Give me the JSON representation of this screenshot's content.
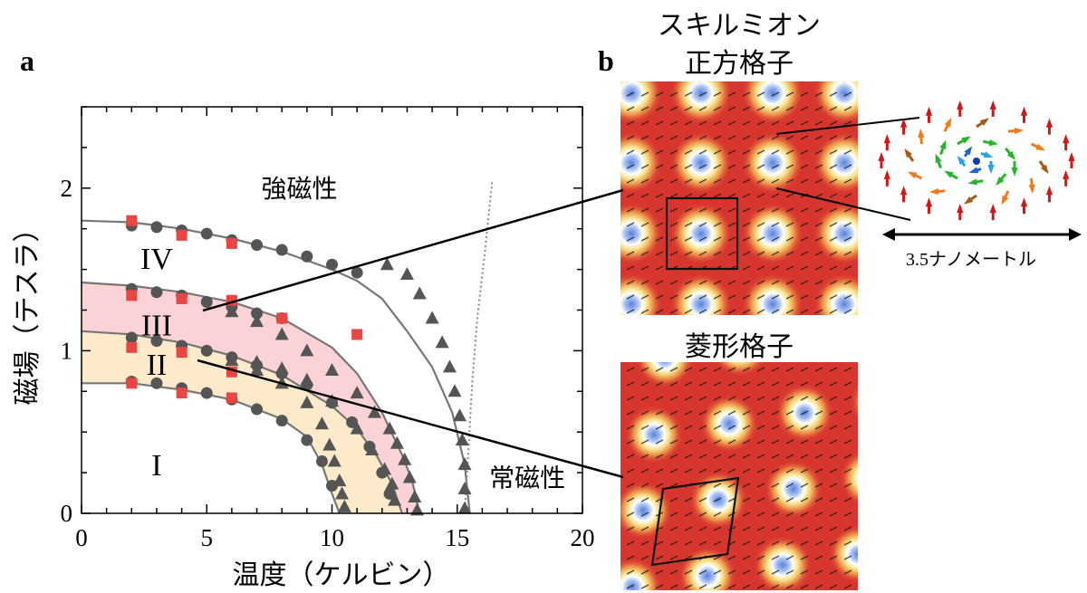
{
  "panel_a": {
    "letter": "a",
    "chart_data": {
      "type": "scatter",
      "xlabel": "温度（ケルビン）",
      "ylabel": "磁場（テスラ）",
      "xlim": [
        0,
        20
      ],
      "ylim": [
        0,
        2.5
      ],
      "x_ticks": [
        "0",
        "5",
        "10",
        "15",
        "20"
      ],
      "y_ticks": [
        "0",
        "1",
        "2"
      ],
      "region_labels": [
        {
          "text": "I",
          "x": 3,
          "y": 0.3
        },
        {
          "text": "II",
          "x": 3,
          "y": 0.92
        },
        {
          "text": "III",
          "x": 3,
          "y": 1.16
        },
        {
          "text": "IV",
          "x": 3,
          "y": 1.57
        }
      ],
      "phase_labels": [
        {
          "text": "強磁性",
          "x": 8.7,
          "y": 2.0
        },
        {
          "text": "常磁性",
          "x": 17.8,
          "y": 0.22
        }
      ],
      "bands": [
        {
          "color": "#fbd3d7",
          "upper": [
            [
              0,
              1.42
            ],
            [
              2,
              1.4
            ],
            [
              4,
              1.36
            ],
            [
              6,
              1.3
            ],
            [
              8,
              1.2
            ],
            [
              10,
              1.02
            ],
            [
              11,
              0.86
            ],
            [
              12,
              0.62
            ],
            [
              12.8,
              0.36
            ],
            [
              13.2,
              0.2
            ],
            [
              13.5,
              0
            ]
          ],
          "lower": [
            [
              0,
              1.12
            ],
            [
              2,
              1.1
            ],
            [
              4,
              1.05
            ],
            [
              6,
              0.97
            ],
            [
              8,
              0.85
            ],
            [
              10,
              0.66
            ],
            [
              11,
              0.52
            ],
            [
              11.8,
              0.35
            ],
            [
              12.4,
              0.18
            ],
            [
              12.8,
              0
            ]
          ]
        },
        {
          "color": "#fdeacb",
          "upper": [
            [
              0,
              1.12
            ],
            [
              2,
              1.1
            ],
            [
              4,
              1.05
            ],
            [
              6,
              0.97
            ],
            [
              8,
              0.85
            ],
            [
              10,
              0.66
            ],
            [
              11,
              0.52
            ],
            [
              11.8,
              0.35
            ],
            [
              12.4,
              0.18
            ],
            [
              12.8,
              0
            ]
          ],
          "lower": [
            [
              0,
              0.8
            ],
            [
              2,
              0.8
            ],
            [
              4,
              0.76
            ],
            [
              6,
              0.7
            ],
            [
              8,
              0.58
            ],
            [
              9,
              0.47
            ],
            [
              9.6,
              0.3
            ],
            [
              10,
              0.12
            ],
            [
              10.3,
              0
            ]
          ]
        }
      ],
      "curves": [
        [
          [
            0,
            1.8
          ],
          [
            2,
            1.79
          ],
          [
            4,
            1.75
          ],
          [
            6,
            1.69
          ],
          [
            8,
            1.61
          ],
          [
            10,
            1.5
          ],
          [
            11,
            1.43
          ],
          [
            12,
            1.32
          ],
          [
            13,
            1.12
          ],
          [
            14,
            0.9
          ],
          [
            14.8,
            0.62
          ],
          [
            15.3,
            0.3
          ],
          [
            15.5,
            0
          ]
        ],
        [
          [
            0,
            1.42
          ],
          [
            2,
            1.4
          ],
          [
            4,
            1.36
          ],
          [
            6,
            1.3
          ],
          [
            8,
            1.2
          ],
          [
            10,
            1.02
          ],
          [
            11,
            0.86
          ],
          [
            12,
            0.62
          ],
          [
            12.8,
            0.36
          ],
          [
            13.2,
            0.2
          ],
          [
            13.5,
            0
          ]
        ],
        [
          [
            0,
            1.12
          ],
          [
            2,
            1.1
          ],
          [
            4,
            1.05
          ],
          [
            6,
            0.97
          ],
          [
            8,
            0.85
          ],
          [
            10,
            0.66
          ],
          [
            11,
            0.52
          ],
          [
            11.8,
            0.35
          ],
          [
            12.4,
            0.18
          ],
          [
            12.8,
            0
          ]
        ],
        [
          [
            0,
            0.8
          ],
          [
            2,
            0.8
          ],
          [
            4,
            0.76
          ],
          [
            6,
            0.7
          ],
          [
            8,
            0.58
          ],
          [
            9,
            0.47
          ],
          [
            9.6,
            0.3
          ],
          [
            10,
            0.12
          ],
          [
            10.3,
            0
          ]
        ]
      ],
      "dotted_curve": [
        [
          15.3,
          0
        ],
        [
          15.45,
          0.4
        ],
        [
          15.6,
          0.8
        ],
        [
          15.8,
          1.2
        ],
        [
          16.1,
          1.6
        ],
        [
          16.4,
          2.05
        ]
      ],
      "series": [
        {
          "marker": "circle",
          "color": "#555555",
          "points": [
            [
              2,
              1.77
            ],
            [
              3,
              1.76
            ],
            [
              4,
              1.74
            ],
            [
              5,
              1.72
            ],
            [
              6,
              1.68
            ],
            [
              7,
              1.65
            ],
            [
              8,
              1.62
            ],
            [
              9,
              1.58
            ],
            [
              10,
              1.53
            ],
            [
              11,
              1.48
            ],
            [
              2,
              1.38
            ],
            [
              3,
              1.36
            ],
            [
              4,
              1.34
            ],
            [
              5,
              1.3
            ],
            [
              6,
              1.27
            ],
            [
              7,
              1.23
            ],
            [
              8,
              1.2
            ],
            [
              2,
              1.08
            ],
            [
              3,
              1.06
            ],
            [
              4,
              1.03
            ],
            [
              5,
              1.0
            ],
            [
              6,
              0.96
            ],
            [
              7,
              0.91
            ],
            [
              8,
              0.86
            ],
            [
              9,
              0.79
            ],
            [
              10,
              0.68
            ],
            [
              10.8,
              0.56
            ],
            [
              11.5,
              0.41
            ],
            [
              12,
              0.25
            ],
            [
              12.3,
              0.12
            ],
            [
              2,
              0.81
            ],
            [
              3,
              0.8
            ],
            [
              4,
              0.77
            ],
            [
              5,
              0.74
            ],
            [
              6,
              0.7
            ],
            [
              7,
              0.64
            ],
            [
              8,
              0.57
            ],
            [
              9,
              0.45
            ],
            [
              9.6,
              0.32
            ],
            [
              10,
              0.17
            ]
          ]
        },
        {
          "marker": "triangle",
          "color": "#555555",
          "points": [
            [
              6,
              1.24
            ],
            [
              7,
              1.18
            ],
            [
              8,
              1.1
            ],
            [
              9,
              1.0
            ],
            [
              10,
              0.88
            ],
            [
              11,
              0.74
            ],
            [
              11.7,
              0.62
            ],
            [
              12.3,
              0.52
            ],
            [
              12.6,
              0.43
            ],
            [
              12.9,
              0.33
            ],
            [
              13.1,
              0.22
            ],
            [
              13.3,
              0.1
            ],
            [
              13.4,
              0.02
            ],
            [
              6,
              0.94
            ],
            [
              7,
              0.88
            ],
            [
              8,
              0.8
            ],
            [
              9,
              0.68
            ],
            [
              9.6,
              0.55
            ],
            [
              9.9,
              0.42
            ],
            [
              10.1,
              0.32
            ],
            [
              10.3,
              0.2
            ],
            [
              10.4,
              0.12
            ],
            [
              10.5,
              0.04
            ],
            [
              7,
              0.93
            ],
            [
              8,
              0.89
            ],
            [
              9,
              0.82
            ],
            [
              10,
              0.69
            ],
            [
              11,
              0.52
            ],
            [
              11.6,
              0.39
            ],
            [
              12.1,
              0.27
            ],
            [
              12.4,
              0.18
            ],
            [
              12.5,
              0.08
            ],
            [
              13,
              1.47
            ],
            [
              13.5,
              1.35
            ],
            [
              14,
              1.2
            ],
            [
              14.4,
              1.05
            ],
            [
              14.7,
              0.9
            ],
            [
              14.9,
              0.75
            ],
            [
              15.1,
              0.6
            ],
            [
              15.2,
              0.45
            ],
            [
              15.3,
              0.3
            ],
            [
              15.3,
              0.15
            ],
            [
              15.3,
              0.03
            ],
            [
              12.2,
              1.53
            ]
          ]
        },
        {
          "marker": "square",
          "color": "#e84545",
          "points": [
            [
              2,
              1.8
            ],
            [
              4,
              1.71
            ],
            [
              6,
              1.66
            ],
            [
              2,
              1.34
            ],
            [
              4,
              1.32
            ],
            [
              6,
              1.31
            ],
            [
              8,
              1.2
            ],
            [
              11,
              1.1
            ],
            [
              2,
              1.02
            ],
            [
              4,
              0.99
            ],
            [
              6,
              0.87
            ],
            [
              2,
              0.8
            ],
            [
              4,
              0.74
            ],
            [
              6,
              0.71
            ]
          ]
        }
      ]
    }
  },
  "panel_b": {
    "letter": "b",
    "square_title_line1": "スキルミオン",
    "square_title_line2": "正方格子",
    "rhombic_title": "菱形格子",
    "scale_label": "3.5ナノメートル",
    "colors": {
      "bg": "#d7362f",
      "core": "#6e8fe0",
      "ring": "#f7e08a"
    }
  }
}
